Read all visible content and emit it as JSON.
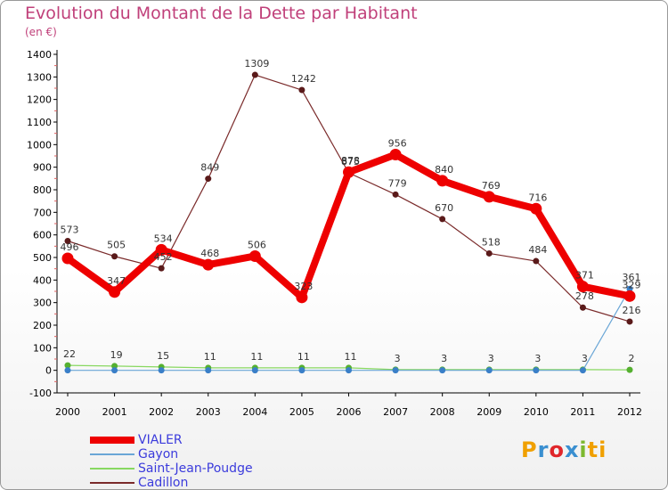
{
  "header": {
    "title": "Evolution du Montant de la Dette par Habitant",
    "subtitle": "(en €)"
  },
  "logo": {
    "text": "Proxiti",
    "letters": [
      "P",
      "r",
      "o",
      "x",
      "i",
      "ti"
    ]
  },
  "colors": {
    "title": "#c0407a",
    "vialer": "#ee0000",
    "gayon": "#6aa6d6",
    "saint_jean": "#88d860",
    "cadillon": "#7a2a2a"
  },
  "chart_data": {
    "type": "line",
    "title": "Evolution du Montant de la Dette par Habitant",
    "ylabel": "(en €)",
    "xlabel": "",
    "ylim": [
      -100,
      1400
    ],
    "yticks": [
      -100,
      0,
      100,
      200,
      300,
      400,
      500,
      600,
      700,
      800,
      900,
      1000,
      1100,
      1200,
      1300,
      1400
    ],
    "categories": [
      "2000",
      "2001",
      "2002",
      "2003",
      "2004",
      "2005",
      "2006",
      "2007",
      "2008",
      "2009",
      "2010",
      "2011",
      "2012"
    ],
    "grid": false,
    "legend_position": "bottom-left",
    "series": [
      {
        "name": "Cadillon",
        "color": "#7a2a2a",
        "values": [
          573,
          505,
          452,
          849,
          1309,
          1242,
          875,
          779,
          670,
          518,
          484,
          278,
          216
        ]
      },
      {
        "name": "Saint-Jean-Poudge",
        "color": "#88d860",
        "values": [
          22,
          19,
          15,
          11,
          11,
          11,
          11,
          3,
          3,
          3,
          3,
          3,
          2
        ]
      },
      {
        "name": "Gayon",
        "color": "#6aa6d6",
        "values": [
          0,
          0,
          0,
          0,
          0,
          0,
          0,
          0,
          0,
          0,
          0,
          0,
          361
        ]
      },
      {
        "name": "VIALER",
        "color": "#ee0000",
        "values": [
          496,
          347,
          534,
          468,
          506,
          323,
          878,
          956,
          840,
          769,
          716,
          371,
          329
        ]
      }
    ],
    "labels": [
      {
        "series": "Cadillon",
        "texts": [
          "573",
          "505",
          "452",
          "849",
          "1309",
          "1242",
          "875",
          "779",
          "670",
          "518",
          "484",
          "278",
          "216"
        ]
      },
      {
        "series": "Saint-Jean-Poudge",
        "texts": [
          "22",
          "19",
          "15",
          "11",
          "11",
          "11",
          "11",
          "3",
          "3",
          "3",
          "3",
          "3",
          "2"
        ]
      },
      {
        "series": "Gayon",
        "texts": [
          "",
          "",
          "",
          "",
          "",
          "",
          "",
          "",
          "",
          "",
          "",
          "",
          "361"
        ]
      },
      {
        "series": "VIALER",
        "texts": [
          "496",
          "347",
          "534",
          "468",
          "506",
          "323",
          "878",
          "956",
          "840",
          "769",
          "716",
          "371",
          "329"
        ]
      }
    ]
  },
  "legend": [
    {
      "label": "VIALER",
      "color": "#ee0000"
    },
    {
      "label": "Gayon",
      "color": "#6aa6d6"
    },
    {
      "label": "Saint-Jean-Poudge",
      "color": "#88d860"
    },
    {
      "label": "Cadillon",
      "color": "#7a2a2a"
    }
  ]
}
